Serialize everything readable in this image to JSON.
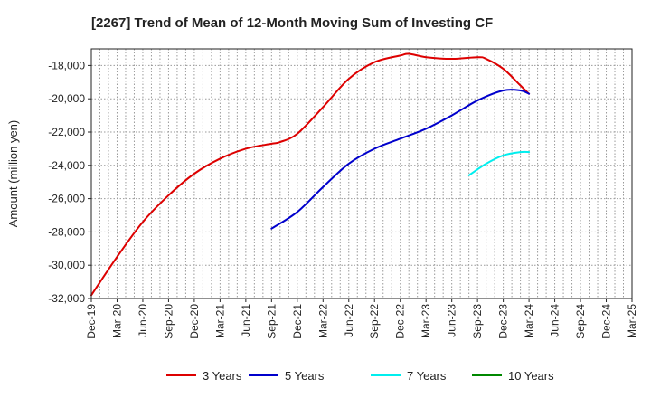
{
  "chart_data": {
    "type": "line",
    "title": "[2267]  Trend of Mean of 12-Month Moving Sum of Investing CF",
    "xlabel": "",
    "ylabel": "Amount (million yen)",
    "ylim": [
      -32000,
      -17000
    ],
    "yticks": [
      -32000,
      -30000,
      -28000,
      -26000,
      -24000,
      -22000,
      -20000,
      -18000
    ],
    "ytick_labels": [
      "-32,000",
      "-30,000",
      "-28,000",
      "-26,000",
      "-24,000",
      "-22,000",
      "-20,000",
      "-18,000"
    ],
    "xlim": [
      "2019-12",
      "2025-03"
    ],
    "xticks": [
      "2019-12",
      "2020-03",
      "2020-06",
      "2020-09",
      "2020-12",
      "2021-03",
      "2021-06",
      "2021-09",
      "2021-12",
      "2022-03",
      "2022-06",
      "2022-09",
      "2022-12",
      "2023-03",
      "2023-06",
      "2023-09",
      "2023-12",
      "2024-03",
      "2024-06",
      "2024-09",
      "2024-12",
      "2025-03"
    ],
    "xtick_labels": [
      "Dec-19",
      "Mar-20",
      "Jun-20",
      "Sep-20",
      "Dec-20",
      "Mar-21",
      "Jun-21",
      "Sep-21",
      "Dec-21",
      "Mar-22",
      "Jun-22",
      "Sep-22",
      "Dec-22",
      "Mar-23",
      "Jun-23",
      "Sep-23",
      "Dec-23",
      "Mar-24",
      "Jun-24",
      "Sep-24",
      "Dec-24",
      "Mar-25"
    ],
    "grid": true,
    "legend_position": "bottom",
    "series": [
      {
        "name": "3 Years",
        "color": "#dd0000",
        "points": [
          [
            "2019-12",
            -31800
          ],
          [
            "2020-03",
            -29500
          ],
          [
            "2020-06",
            -27400
          ],
          [
            "2020-09",
            -25800
          ],
          [
            "2020-12",
            -24500
          ],
          [
            "2021-03",
            -23600
          ],
          [
            "2021-06",
            -23000
          ],
          [
            "2021-09",
            -22700
          ],
          [
            "2021-10",
            -22600
          ],
          [
            "2021-12",
            -22100
          ],
          [
            "2022-03",
            -20500
          ],
          [
            "2022-06",
            -18800
          ],
          [
            "2022-09",
            -17800
          ],
          [
            "2022-12",
            -17400
          ],
          [
            "2023-01",
            -17300
          ],
          [
            "2023-03",
            -17500
          ],
          [
            "2023-06",
            -17600
          ],
          [
            "2023-09",
            -17500
          ],
          [
            "2023-10",
            -17600
          ],
          [
            "2023-12",
            -18200
          ],
          [
            "2024-02",
            -19200
          ],
          [
            "2024-03",
            -19700
          ]
        ]
      },
      {
        "name": "5 Years",
        "color": "#0000cc",
        "points": [
          [
            "2021-09",
            -27800
          ],
          [
            "2021-12",
            -26800
          ],
          [
            "2022-03",
            -25300
          ],
          [
            "2022-06",
            -23900
          ],
          [
            "2022-09",
            -23000
          ],
          [
            "2022-12",
            -22400
          ],
          [
            "2023-03",
            -21800
          ],
          [
            "2023-06",
            -21000
          ],
          [
            "2023-09",
            -20100
          ],
          [
            "2023-12",
            -19500
          ],
          [
            "2024-02",
            -19500
          ],
          [
            "2024-03",
            -19700
          ]
        ]
      },
      {
        "name": "7 Years",
        "color": "#00eeee",
        "points": [
          [
            "2023-08",
            -24600
          ],
          [
            "2023-10",
            -23900
          ],
          [
            "2023-12",
            -23400
          ],
          [
            "2024-02",
            -23200
          ],
          [
            "2024-03",
            -23200
          ]
        ]
      },
      {
        "name": "10 Years",
        "color": "#008800",
        "points": []
      }
    ]
  }
}
